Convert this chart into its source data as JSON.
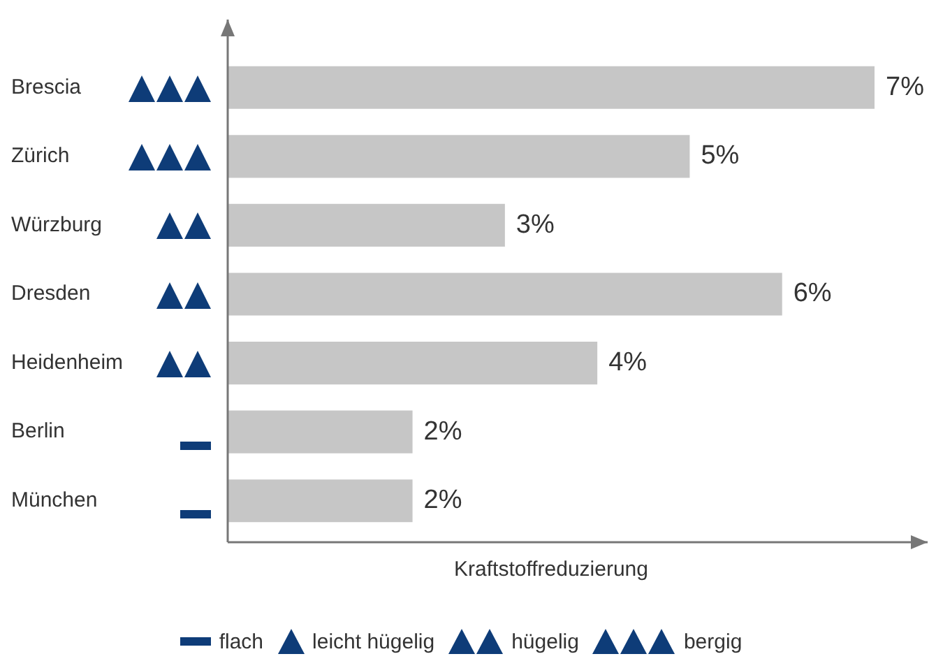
{
  "chart_data": {
    "type": "bar",
    "orientation": "horizontal",
    "xlabel": "Kraftstoffreduzierung",
    "categories": [
      "Brescia",
      "Zürich",
      "Würzburg",
      "Dresden",
      "Heidenheim",
      "Berlin",
      "München"
    ],
    "values": [
      7,
      5,
      3,
      6,
      4,
      2,
      2
    ],
    "value_labels": [
      "7%",
      "5%",
      "3%",
      "6%",
      "4%",
      "2%",
      "2%"
    ],
    "color": "#c6c6c6",
    "xlim": [
      0,
      7
    ],
    "tick_labels": "y",
    "legend": false,
    "annotations": [
      "flach",
      "leicht hügelig",
      "hügelig",
      "bergig"
    ]
  }
}
